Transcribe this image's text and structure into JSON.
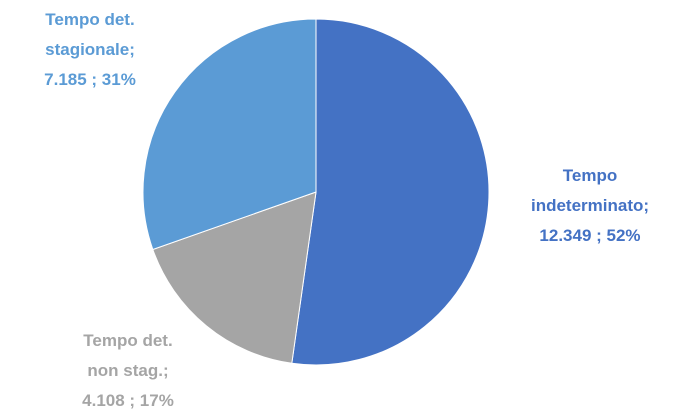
{
  "chart_data": {
    "type": "pie",
    "categories": [
      "Tempo indeterminato;",
      "Tempo det. non stag.;",
      "Tempo det. stagionale;"
    ],
    "values": [
      12349,
      4108,
      7185
    ],
    "value_labels": [
      "12.349 ; 52%",
      "4.108 ; 17%",
      "7.185 ; 31%"
    ],
    "colors": [
      "#4472c4",
      "#a5a5a5",
      "#5b9bd5"
    ]
  }
}
